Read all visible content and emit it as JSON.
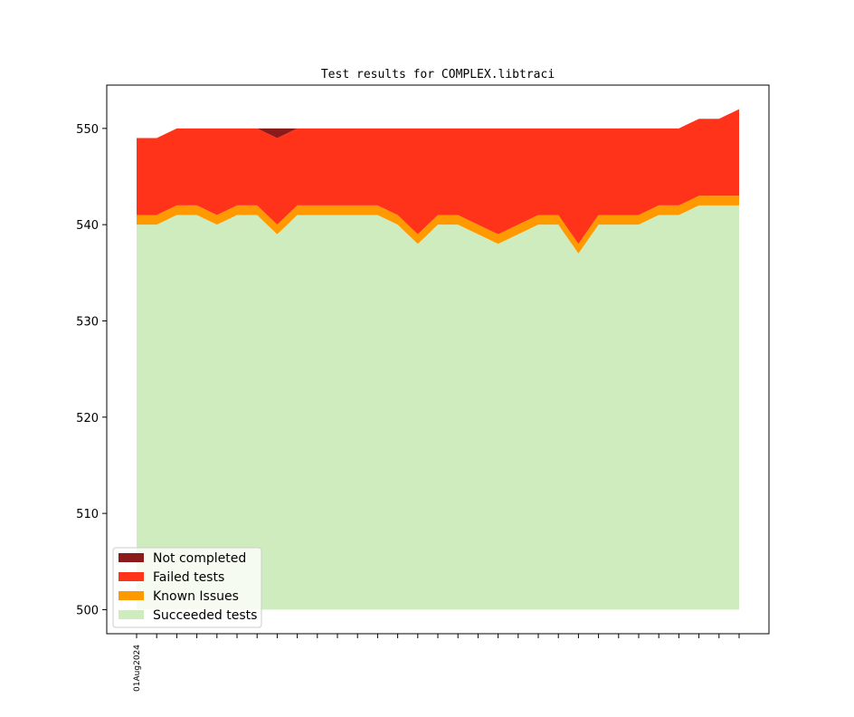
{
  "chart_data": {
    "type": "area",
    "title": "Test results for COMPLEX.libtraci",
    "xlabel": "",
    "ylabel": "",
    "ylim": [
      497.5,
      554.5
    ],
    "yticks": [
      500,
      510,
      520,
      530,
      540,
      550
    ],
    "x_tick_count": 31,
    "x_tick_labels": [
      "01Aug2024"
    ],
    "legend_position": "lower-left",
    "grid": false,
    "series": [
      {
        "name": "Succeeded tests",
        "color": "#cfecbf",
        "values": [
          540,
          540,
          541,
          541,
          540,
          541,
          541,
          539,
          541,
          541,
          541,
          541,
          541,
          540,
          538,
          540,
          540,
          539,
          538,
          539,
          540,
          540,
          537,
          540,
          540,
          540,
          541,
          541,
          542,
          542,
          542
        ]
      },
      {
        "name": "Known Issues",
        "color": "#ff9900",
        "values": [
          1,
          1,
          1,
          1,
          1,
          1,
          1,
          1,
          1,
          1,
          1,
          1,
          1,
          1,
          1,
          1,
          1,
          1,
          1,
          1,
          1,
          1,
          1,
          1,
          1,
          1,
          1,
          1,
          1,
          1,
          1
        ]
      },
      {
        "name": "Failed tests",
        "color": "#ff331a",
        "values": [
          8,
          8,
          8,
          8,
          9,
          8,
          8,
          9,
          8,
          8,
          8,
          8,
          8,
          9,
          11,
          9,
          9,
          10,
          11,
          10,
          9,
          9,
          12,
          9,
          9,
          9,
          8,
          8,
          8,
          8,
          9
        ]
      },
      {
        "name": "Not completed",
        "color": "#8b1a1a",
        "values": [
          0,
          0,
          0,
          0,
          0,
          0,
          0,
          1,
          0,
          0,
          0,
          0,
          0,
          0,
          0,
          0,
          0,
          0,
          0,
          0,
          0,
          0,
          0,
          0,
          0,
          0,
          0,
          0,
          0,
          0,
          0
        ]
      }
    ],
    "legend_order": [
      "Not completed",
      "Failed tests",
      "Known Issues",
      "Succeeded tests"
    ]
  }
}
